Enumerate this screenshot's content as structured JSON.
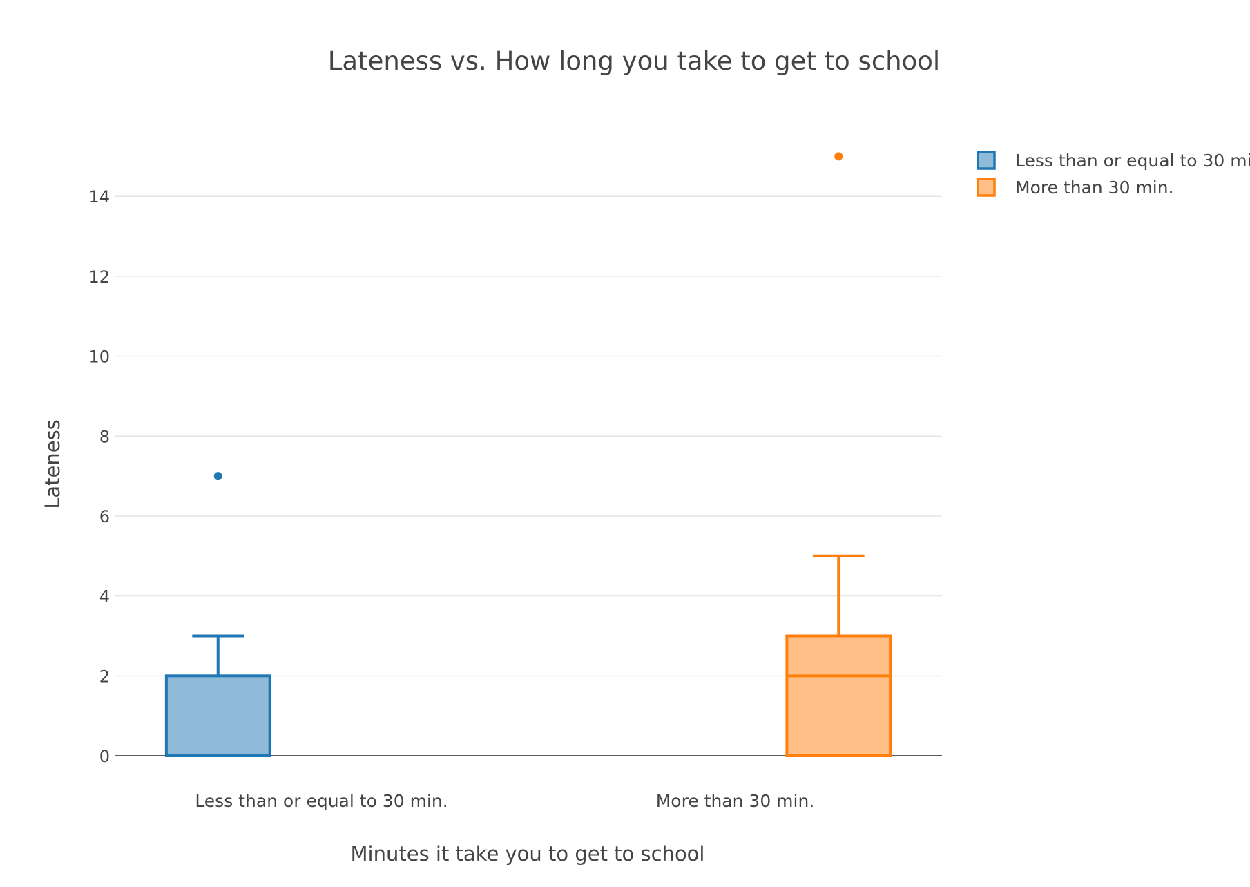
{
  "chart_data": {
    "type": "box",
    "title": "Lateness vs. How long you take to get to school",
    "xlabel": "Minutes it take you to get to school",
    "ylabel": "Lateness",
    "categories": [
      "Less than or equal to 30 min.",
      "More than 30 min."
    ],
    "ylim": [
      0,
      16.2
    ],
    "yticks": [
      0,
      2,
      4,
      6,
      8,
      10,
      12,
      14
    ],
    "grid": true,
    "legend_position": "top-right",
    "series": [
      {
        "name": "Less than or equal to 30 min.",
        "category": "Less than or equal to 30 min.",
        "color": "#1f77b4",
        "fill": "#8fbbd9",
        "min": 0,
        "q1": 0,
        "median": 0,
        "q3": 2,
        "max": 3,
        "outliers": [
          7
        ]
      },
      {
        "name": "More than 30 min.",
        "category": "More than 30 min.",
        "color": "#ff7f0e",
        "fill": "#ffbf86",
        "min": 0,
        "q1": 0,
        "median": 2,
        "q3": 3,
        "max": 5,
        "outliers": [
          15
        ]
      }
    ]
  }
}
